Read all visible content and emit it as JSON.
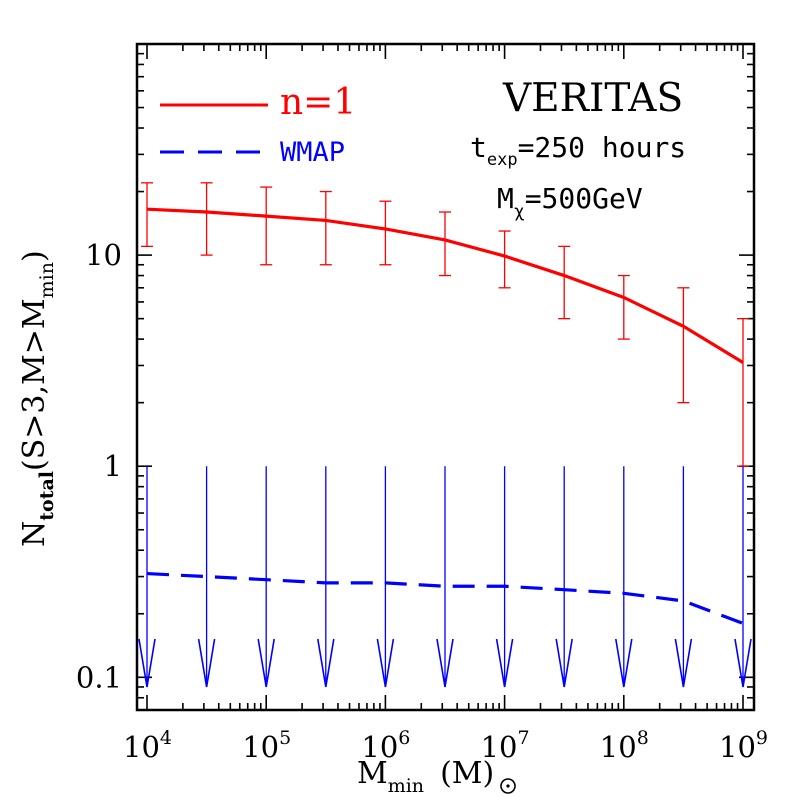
{
  "chart_data": {
    "type": "line",
    "x_scale": "log",
    "y_scale": "log",
    "xlim": [
      10000,
      1000000000
    ],
    "ylim": [
      0.07,
      100
    ],
    "x_tick_bases": [
      "10",
      "10",
      "10",
      "10",
      "10",
      "10"
    ],
    "x_tick_exponents": [
      "4",
      "5",
      "6",
      "7",
      "8",
      "9"
    ],
    "x_tick_values": [
      10000,
      100000,
      1000000,
      10000000,
      100000000,
      1000000000
    ],
    "y_tick_labels": [
      "0.1",
      "1",
      "10"
    ],
    "y_tick_values": [
      0.1,
      1,
      10
    ],
    "xlabel": {
      "main": "M",
      "sub": "min",
      "unit_open": "(M",
      "unit_close": ")"
    },
    "ylabel": {
      "main": "N",
      "sub": "total",
      "expr_a": "(S>3,M>M",
      "expr_sub": "min",
      "expr_b": ")"
    },
    "annotations": {
      "instrument": "VERITAS",
      "texp": {
        "main": "t",
        "sub": "exp",
        "rest": "=250 hours"
      },
      "mchi": {
        "main": "M",
        "sub": "χ",
        "rest": "=500GeV"
      }
    },
    "series": [
      {
        "name": "n=1",
        "style": "solid",
        "color": "#ff0000",
        "x": [
          10000,
          31623,
          100000,
          316228,
          1000000,
          3162278,
          10000000,
          31622777,
          100000000,
          316227766,
          1000000000
        ],
        "y": [
          16.5,
          16,
          15.3,
          14.6,
          13.3,
          11.8,
          9.9,
          8.0,
          6.3,
          4.6,
          3.1
        ],
        "error_low": [
          11,
          10,
          9,
          9,
          9,
          8,
          7,
          5,
          4,
          2,
          1
        ],
        "error_high": [
          22,
          22,
          21,
          20,
          18,
          16,
          13,
          11,
          8,
          7,
          5
        ]
      },
      {
        "name": "WMAP",
        "style": "dashed",
        "color": "#0000ff",
        "x": [
          10000,
          31623,
          100000,
          316228,
          1000000,
          3162278,
          10000000,
          31622777,
          100000000,
          316227766,
          1000000000
        ],
        "y": [
          0.31,
          0.3,
          0.29,
          0.28,
          0.28,
          0.27,
          0.27,
          0.26,
          0.25,
          0.23,
          0.18
        ],
        "upper_limit_from": 1,
        "upper_limit_to": 0.09
      }
    ],
    "colors": {
      "red": "#ff0000",
      "blue": "#0000ff",
      "axis": "#000000"
    }
  }
}
